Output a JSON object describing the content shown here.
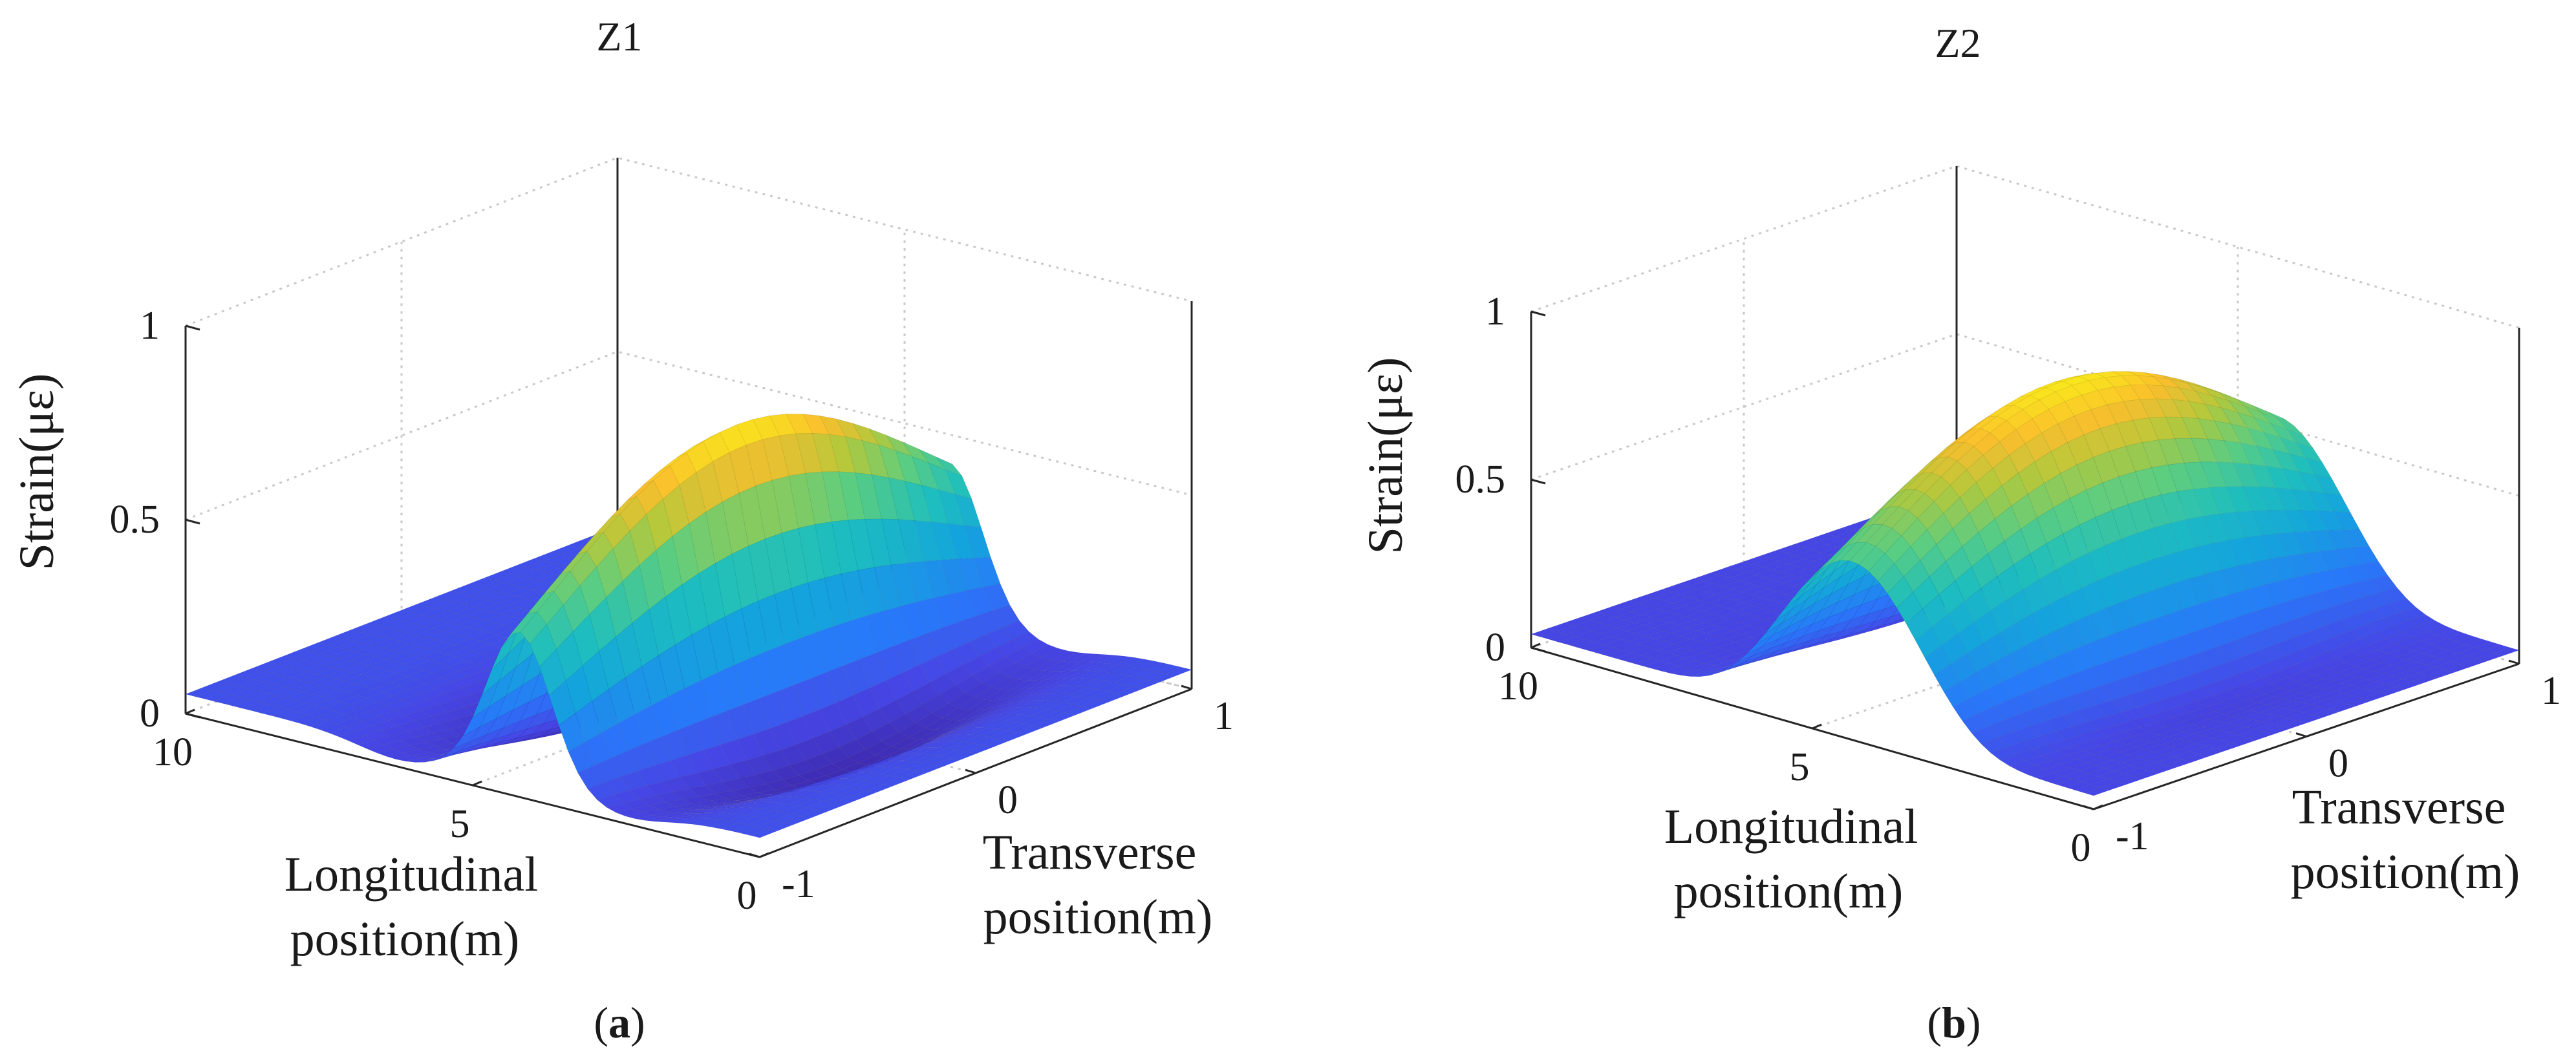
{
  "figure": {
    "panels": [
      {
        "id": "a",
        "caption_open": "(",
        "caption_letter": "a",
        "caption_close": ")"
      },
      {
        "id": "b",
        "caption_open": "(",
        "caption_letter": "b",
        "caption_close": ")"
      }
    ]
  },
  "colormap": "parula",
  "colors": {
    "low": "#3d26a8",
    "mid": "#1fb2c8",
    "high": "#f9e51e",
    "axis": "#262626",
    "grid": "#c9c9c9"
  },
  "chart_data": [
    {
      "type": "surface3d",
      "title": "Z1",
      "xlabel": "Longitudinal position(m)",
      "xlabel_lines": [
        "Longitudinal",
        "position(m)"
      ],
      "ylabel": "Transverse position(m)",
      "ylabel_lines": [
        "Transverse",
        "position(m)"
      ],
      "zlabel": "Strain(με)",
      "xlim": [
        0,
        10
      ],
      "ylim": [
        -1,
        1
      ],
      "zlim": [
        0,
        1
      ],
      "xticks": [
        "0",
        "5",
        "10"
      ],
      "yticks": [
        "-1",
        "0",
        "1"
      ],
      "zticks": [
        "0",
        "0.5",
        "1"
      ],
      "grid": true,
      "surface": {
        "baseline": 0.05,
        "peak": {
          "x": 4.2,
          "y": 0.0,
          "z": 0.75
        },
        "spread_longitudinal_m": 0.55,
        "spread_transverse_m": 0.9,
        "troughs": [
          {
            "x": 2.3,
            "y": 0.0,
            "z": -0.08
          },
          {
            "x": 6.3,
            "y": 0.0,
            "z": -0.08
          }
        ]
      }
    },
    {
      "type": "surface3d",
      "title": "Z2",
      "xlabel": "Longitudinal position(m)",
      "xlabel_lines": [
        "Longitudinal",
        "position(m)"
      ],
      "ylabel": "Transverse position(m)",
      "ylabel_lines": [
        "Transverse",
        "position(m)"
      ],
      "zlabel": "Strain(με)",
      "xlim": [
        0,
        10
      ],
      "ylim": [
        -1,
        1
      ],
      "zlim": [
        0,
        1
      ],
      "xticks": [
        "0",
        "5",
        "10"
      ],
      "yticks": [
        "-1",
        "0",
        "1"
      ],
      "zticks": [
        "0",
        "0.5",
        "1"
      ],
      "grid": true,
      "surface": {
        "baseline": 0.04,
        "peak": {
          "x": 4.3,
          "y": 0.0,
          "z": 0.85
        },
        "spread_longitudinal_m": 1.2,
        "spread_transverse_m": 1.0,
        "troughs": [
          {
            "x": 6.6,
            "y": 0.0,
            "z": -0.06
          },
          {
            "x": 2.0,
            "y": 0.0,
            "z": -0.04
          }
        ]
      }
    }
  ]
}
